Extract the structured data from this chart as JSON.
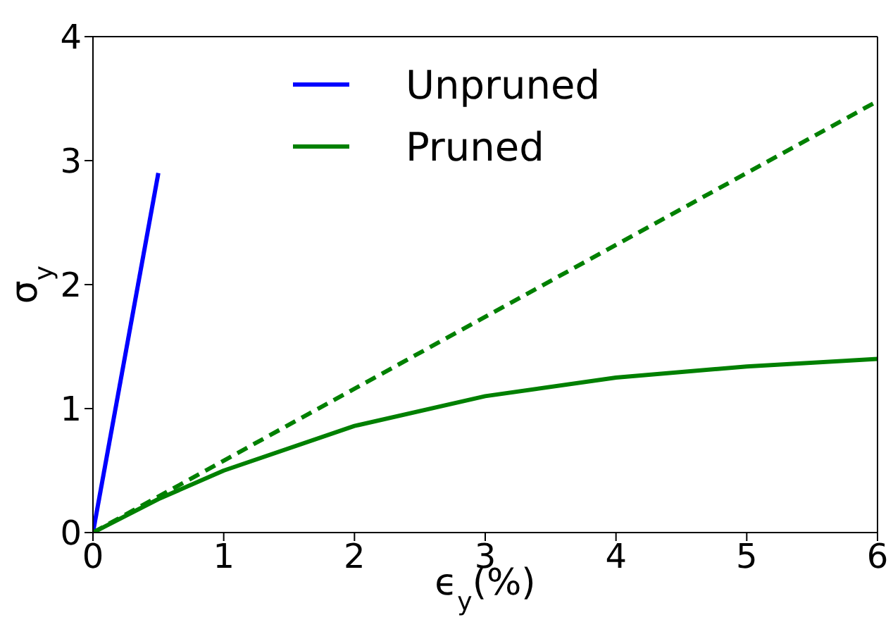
{
  "chart_data": {
    "type": "line",
    "xlabel": "ϵ$_{y}$(%)",
    "ylabel": "σ$_{y}$",
    "series": [
      {
        "name": "Unpruned",
        "color": "#0000ff",
        "x": [
          0,
          0.5
        ],
        "values": [
          0,
          2.9
        ]
      },
      {
        "name": "Pruned",
        "color": "#008000",
        "x": [
          0,
          0.5,
          1,
          2,
          3,
          4,
          5,
          6
        ],
        "values": [
          0,
          0.27,
          0.5,
          0.86,
          1.1,
          1.25,
          1.34,
          1.4
        ]
      },
      {
        "color": "#008000",
        "line_style": "dashed",
        "x": [
          0,
          6
        ],
        "values": [
          0,
          3.48
        ]
      }
    ],
    "xlim": [
      0,
      6
    ],
    "xticks": [
      0,
      1,
      2,
      3,
      4,
      5,
      6
    ],
    "ylim": [
      0,
      4
    ],
    "yticks": [
      0,
      1,
      2,
      3,
      4
    ],
    "legend": "top",
    "marker": "none"
  }
}
